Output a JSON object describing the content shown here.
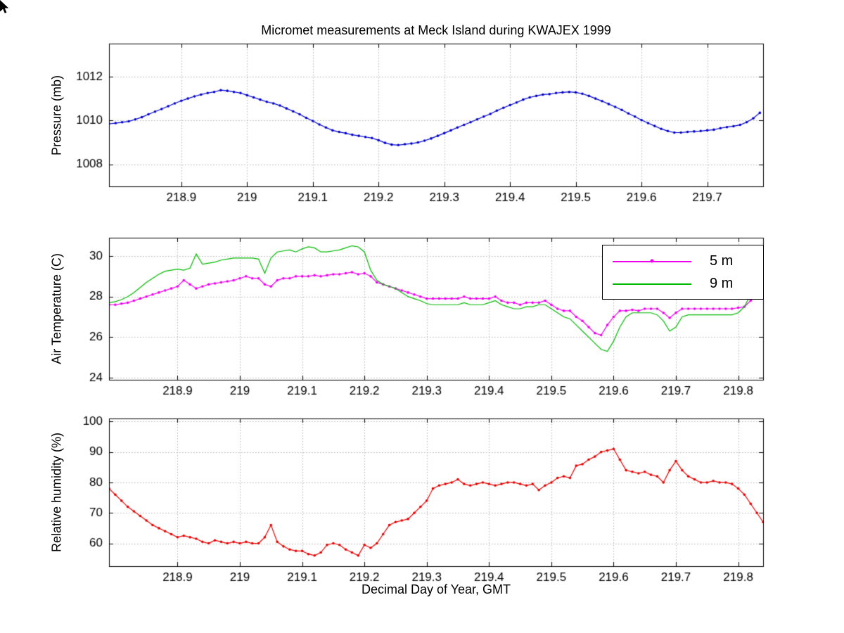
{
  "icons": {
    "mouse_cursor": "arrow-cursor"
  },
  "chart_data": [
    {
      "type": "line",
      "title": "Micromet measurements at Meck Island during KWAJEX 1999",
      "ylabel": "Pressure (mb)",
      "xlim": [
        218.79,
        219.785
      ],
      "ylim": [
        1007.0,
        1013.5
      ],
      "xticks": [
        218.9,
        219.0,
        219.1,
        219.2,
        219.3,
        219.4,
        219.5,
        219.6,
        219.7
      ],
      "xtick_labels": [
        "218.9",
        "219",
        "219.1",
        "219.2",
        "219.3",
        "219.4",
        "219.5",
        "219.6",
        "219.7"
      ],
      "yticks": [
        1008,
        1010,
        1012
      ],
      "ytick_labels": [
        "1008",
        "1010",
        "1012"
      ],
      "grid": true,
      "grid_color": "#b4b4b4",
      "series": [
        {
          "name": "Pressure",
          "color": "#0000cc",
          "marker": true,
          "x0": 218.79,
          "dx": 0.01,
          "values": [
            1009.85,
            1009.88,
            1009.92,
            1009.96,
            1010.05,
            1010.15,
            1010.28,
            1010.4,
            1010.52,
            1010.65,
            1010.78,
            1010.9,
            1011.0,
            1011.1,
            1011.18,
            1011.25,
            1011.3,
            1011.38,
            1011.35,
            1011.3,
            1011.25,
            1011.15,
            1011.05,
            1010.95,
            1010.85,
            1010.78,
            1010.68,
            1010.55,
            1010.42,
            1010.28,
            1010.12,
            1009.98,
            1009.82,
            1009.68,
            1009.55,
            1009.48,
            1009.42,
            1009.35,
            1009.3,
            1009.25,
            1009.2,
            1009.1,
            1008.98,
            1008.9,
            1008.88,
            1008.92,
            1008.95,
            1009.0,
            1009.08,
            1009.18,
            1009.3,
            1009.42,
            1009.55,
            1009.68,
            1009.8,
            1009.92,
            1010.05,
            1010.18,
            1010.3,
            1010.45,
            1010.58,
            1010.7,
            1010.82,
            1010.95,
            1011.05,
            1011.12,
            1011.18,
            1011.2,
            1011.25,
            1011.28,
            1011.3,
            1011.28,
            1011.22,
            1011.12,
            1011.0,
            1010.88,
            1010.75,
            1010.62,
            1010.48,
            1010.32,
            1010.18,
            1010.02,
            1009.88,
            1009.75,
            1009.62,
            1009.52,
            1009.45,
            1009.45,
            1009.48,
            1009.5,
            1009.52,
            1009.55,
            1009.58,
            1009.65,
            1009.7,
            1009.74,
            1009.8,
            1009.92,
            1010.1,
            1010.35
          ]
        }
      ]
    },
    {
      "type": "line",
      "ylabel": "Air Temperature (C)",
      "xlim": [
        218.79,
        219.84
      ],
      "ylim": [
        23.9,
        30.9
      ],
      "xticks": [
        218.9,
        219.0,
        219.1,
        219.2,
        219.3,
        219.4,
        219.5,
        219.6,
        219.7,
        219.8
      ],
      "xtick_labels": [
        "218.9",
        "219",
        "219.1",
        "219.2",
        "219.3",
        "219.4",
        "219.5",
        "219.6",
        "219.7",
        "219.8"
      ],
      "yticks": [
        24,
        26,
        28,
        30
      ],
      "ytick_labels": [
        "24",
        "26",
        "28",
        "30"
      ],
      "grid": true,
      "grid_color": "#b4b4b4",
      "legend": {
        "position": "northeast",
        "entries": [
          {
            "label": "5 m",
            "color": "#ee00ee",
            "marker": true
          },
          {
            "label": "9 m",
            "color": "#00b800",
            "marker": false
          }
        ]
      },
      "series": [
        {
          "name": "5 m",
          "color": "#ee00ee",
          "marker": true,
          "x0": 218.79,
          "dx": 0.01,
          "values": [
            27.6,
            27.6,
            27.65,
            27.7,
            27.8,
            27.9,
            28.0,
            28.1,
            28.2,
            28.3,
            28.4,
            28.5,
            28.8,
            28.6,
            28.4,
            28.5,
            28.6,
            28.65,
            28.7,
            28.75,
            28.8,
            28.9,
            29.0,
            28.9,
            28.9,
            28.6,
            28.5,
            28.8,
            28.9,
            28.9,
            29.0,
            29.0,
            29.0,
            29.05,
            29.0,
            29.05,
            29.1,
            29.1,
            29.15,
            29.2,
            29.1,
            29.15,
            29.0,
            28.7,
            28.6,
            28.5,
            28.4,
            28.3,
            28.2,
            28.1,
            28.0,
            27.9,
            27.9,
            27.9,
            27.9,
            27.9,
            27.9,
            28.0,
            27.9,
            27.9,
            27.9,
            27.9,
            28.0,
            27.8,
            27.7,
            27.7,
            27.6,
            27.7,
            27.7,
            27.7,
            27.8,
            27.6,
            27.4,
            27.3,
            27.3,
            27.0,
            26.8,
            26.5,
            26.2,
            26.1,
            26.6,
            27.0,
            27.3,
            27.3,
            27.35,
            27.3,
            27.4,
            27.4,
            27.4,
            27.2,
            26.95,
            27.2,
            27.4,
            27.4,
            27.4,
            27.4,
            27.4,
            27.4,
            27.4,
            27.4,
            27.4,
            27.45,
            27.5,
            27.8,
            28.1,
            28.3
          ]
        },
        {
          "name": "9 m",
          "color": "#00b800",
          "marker": false,
          "x0": 218.79,
          "dx": 0.01,
          "values": [
            27.7,
            27.75,
            27.85,
            28.0,
            28.2,
            28.45,
            28.7,
            28.9,
            29.1,
            29.25,
            29.3,
            29.35,
            29.3,
            29.4,
            30.1,
            29.6,
            29.65,
            29.7,
            29.8,
            29.85,
            29.9,
            29.9,
            29.9,
            29.9,
            29.85,
            29.15,
            29.9,
            30.2,
            30.25,
            30.3,
            30.2,
            30.35,
            30.45,
            30.4,
            30.2,
            30.2,
            30.25,
            30.3,
            30.4,
            30.5,
            30.45,
            30.2,
            29.3,
            28.8,
            28.6,
            28.5,
            28.4,
            28.2,
            28.0,
            27.9,
            27.8,
            27.65,
            27.6,
            27.6,
            27.6,
            27.6,
            27.6,
            27.7,
            27.6,
            27.6,
            27.6,
            27.7,
            27.8,
            27.6,
            27.5,
            27.4,
            27.4,
            27.5,
            27.5,
            27.6,
            27.6,
            27.4,
            27.2,
            27.0,
            26.9,
            26.6,
            26.3,
            26.0,
            25.7,
            25.4,
            25.3,
            25.8,
            26.5,
            27.0,
            27.2,
            27.2,
            27.2,
            27.2,
            27.1,
            26.8,
            26.3,
            26.5,
            27.0,
            27.1,
            27.1,
            27.1,
            27.1,
            27.1,
            27.1,
            27.1,
            27.1,
            27.2,
            27.5,
            28.1,
            28.6,
            28.9
          ]
        }
      ]
    },
    {
      "type": "line",
      "ylabel": "Relative humidity (%)",
      "xlabel": "Decimal Day of Year, GMT",
      "xlim": [
        218.79,
        219.84
      ],
      "ylim": [
        52.5,
        101
      ],
      "xticks": [
        218.9,
        219.0,
        219.1,
        219.2,
        219.3,
        219.4,
        219.5,
        219.6,
        219.7,
        219.8
      ],
      "xtick_labels": [
        "218.9",
        "219",
        "219.1",
        "219.2",
        "219.3",
        "219.4",
        "219.5",
        "219.6",
        "219.7",
        "219.8"
      ],
      "yticks": [
        60,
        70,
        80,
        90,
        100
      ],
      "ytick_labels": [
        "60",
        "70",
        "80",
        "90",
        "100"
      ],
      "grid": true,
      "grid_color": "#b4b4b4",
      "series": [
        {
          "name": "Relative humidity",
          "color": "#e80000",
          "marker": true,
          "x0": 218.79,
          "dx": 0.01,
          "values": [
            78,
            76,
            74,
            72,
            70.5,
            69,
            67.5,
            66,
            65,
            64,
            63,
            62,
            62.5,
            62,
            61.5,
            60.5,
            60,
            61,
            60.5,
            60,
            60.5,
            60,
            60.5,
            60,
            60,
            62,
            66,
            60.5,
            59,
            58,
            57.5,
            57.5,
            56.5,
            56,
            57,
            59.5,
            60,
            59.5,
            58,
            57,
            56,
            59.5,
            58.5,
            60,
            63,
            66,
            67,
            67.5,
            68,
            70,
            72,
            74,
            78,
            79,
            79.5,
            80,
            81,
            79.5,
            79,
            79.5,
            80,
            79.5,
            79,
            79.5,
            80,
            80,
            79.5,
            79,
            79.5,
            77.5,
            79,
            80,
            81.5,
            82,
            81.5,
            85.5,
            86,
            87.5,
            88.5,
            90,
            90.5,
            91,
            87.5,
            84,
            83.5,
            83,
            83.5,
            82.5,
            82,
            80,
            84,
            87,
            84,
            82,
            81,
            80,
            80,
            80.5,
            80,
            80,
            79.5,
            78,
            76,
            73,
            70,
            67
          ]
        }
      ]
    }
  ]
}
